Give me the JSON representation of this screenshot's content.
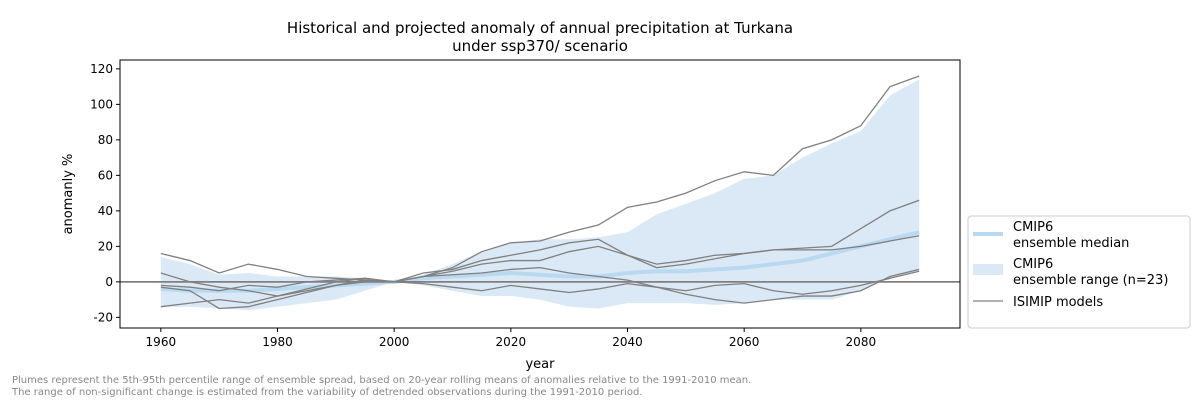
{
  "chart_data": {
    "type": "line",
    "title": "Historical and projected anomaly of annual precipitation at Turkana",
    "subtitle": "under ssp370/ scenario",
    "xlabel": "year",
    "ylabel": "anomanly %",
    "xlim": [
      1953,
      2097
    ],
    "ylim": [
      -26,
      125
    ],
    "xticks": [
      1960,
      1980,
      2000,
      2020,
      2040,
      2060,
      2080
    ],
    "yticks": [
      -20,
      0,
      20,
      40,
      60,
      80,
      100,
      120
    ],
    "x": [
      1960,
      1965,
      1970,
      1975,
      1980,
      1985,
      1990,
      1995,
      2000,
      2005,
      2010,
      2015,
      2020,
      2025,
      2030,
      2035,
      2040,
      2045,
      2050,
      2055,
      2060,
      2065,
      2070,
      2075,
      2080,
      2085,
      2090
    ],
    "band_upper": [
      14,
      10,
      4,
      5,
      3,
      3,
      3,
      2,
      0,
      4,
      10,
      17,
      22,
      24,
      24,
      25,
      28,
      38,
      44,
      50,
      58,
      60,
      70,
      78,
      85,
      105,
      114
    ],
    "band_lower": [
      -14,
      -14,
      -15,
      -16,
      -14,
      -12,
      -10,
      -5,
      0,
      -2,
      -5,
      -8,
      -8,
      -10,
      -14,
      -15,
      -12,
      -12,
      -12,
      -13,
      -12,
      -10,
      -10,
      -10,
      -5,
      2,
      6
    ],
    "median": [
      -4,
      -5,
      -5,
      -5,
      -4,
      -3,
      -2,
      -1,
      0,
      2,
      3,
      4,
      5,
      4,
      3,
      3,
      5,
      6,
      6,
      7,
      8,
      10,
      12,
      16,
      20,
      24,
      28
    ],
    "models": [
      [
        -2,
        -3,
        -5,
        -2,
        -3,
        0,
        1,
        2,
        0,
        3,
        8,
        17,
        22,
        23,
        28,
        32,
        42,
        45,
        50,
        57,
        62,
        60,
        75,
        80,
        88,
        110,
        116
      ],
      [
        16,
        12,
        5,
        10,
        7,
        3,
        2,
        1,
        0,
        5,
        7,
        12,
        15,
        18,
        22,
        24,
        15,
        8,
        10,
        13,
        16,
        18,
        19,
        20,
        30,
        40,
        46
      ],
      [
        5,
        0,
        -3,
        -5,
        -8,
        -4,
        0,
        2,
        0,
        3,
        6,
        10,
        12,
        12,
        17,
        20,
        15,
        10,
        12,
        15,
        16,
        18,
        18,
        18,
        20,
        23,
        26
      ],
      [
        -3,
        -5,
        -15,
        -14,
        -10,
        -6,
        -2,
        1,
        0,
        -1,
        -3,
        -5,
        -2,
        -4,
        -6,
        -4,
        -1,
        -3,
        -7,
        -10,
        -12,
        -10,
        -8,
        -8,
        -5,
        3,
        7
      ],
      [
        -14,
        -12,
        -10,
        -12,
        -8,
        -5,
        -2,
        0,
        0,
        3,
        4,
        5,
        7,
        8,
        5,
        3,
        1,
        -3,
        -5,
        -2,
        -1,
        -5,
        -7,
        -5,
        -2,
        2,
        6
      ]
    ],
    "legend": {
      "placement": "right",
      "median": "CMIP6\nensemble median",
      "range": "CMIP6\nensemble range (n=23)",
      "models": "ISIMIP models"
    },
    "colors": {
      "band": "#dbe9f6",
      "median": "#b9d9f0",
      "model": "#808080",
      "zero": "#808080"
    }
  },
  "footnote": [
    "Plumes represent the 5th-95th percentile range of ensemble spread, based on 20-year rolling means of anomalies relative to the 1991-2010 mean.",
    "The range of non-significant change is estimated from the variability of detrended observations during the 1991-2010 period."
  ]
}
